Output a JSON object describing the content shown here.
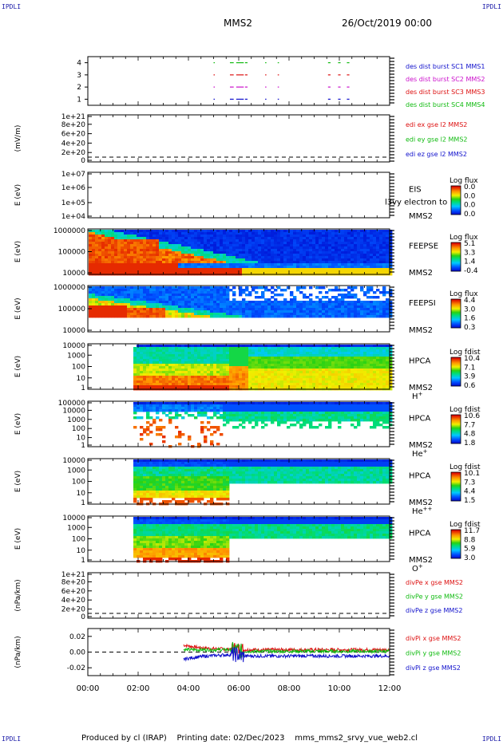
{
  "corner_label": "IPDLI",
  "header": {
    "spacecraft": "MMS2",
    "date": "26/Oct/2019 00:00"
  },
  "footer": {
    "produced": "Produced by cl (IRAP)",
    "printing": "Printing date: 02/Dec/2023",
    "filename": "mms_mms2_srvy_vue_web2.cl"
  },
  "colors": {
    "red": "#dd1111",
    "green": "#11bb11",
    "blue": "#1111cc",
    "magenta": "#cc11cc"
  },
  "chart_data": {
    "type": "heatmap",
    "x_ticks": [
      "00:00",
      "02:00",
      "04:00",
      "06:00",
      "08:00",
      "10:00",
      "12:00"
    ],
    "x_range_hours": [
      0,
      12
    ],
    "panels": [
      {
        "id": "burst",
        "type": "scatter",
        "y_ticks": [
          "1",
          "2",
          "3",
          "4"
        ],
        "ylim": [
          0.5,
          4.5
        ],
        "legend": [
          {
            "text": "des dist burst SC1 MMS1",
            "color": "blue"
          },
          {
            "text": "des dist burst SC2 MMS2",
            "color": "magenta"
          },
          {
            "text": "des dist burst SC3 MMS3",
            "color": "red"
          },
          {
            "text": "des dist burst SC4 MMS4",
            "color": "green"
          }
        ]
      },
      {
        "id": "edi",
        "type": "line",
        "ylabel": "(mV/m)",
        "y_ticks": [
          "0",
          "2e+20",
          "4e+20",
          "6e+20",
          "8e+20",
          "1e+21"
        ],
        "legend": [
          {
            "text": "edi ex gse l2 MMS2",
            "color": "red"
          },
          {
            "text": "edi ey gse l2 MMS2",
            "color": "green"
          },
          {
            "text": "edi ez gse l2 MMS2",
            "color": "blue"
          }
        ]
      },
      {
        "id": "eis",
        "type": "heatmap",
        "ylabel": "E (eV)",
        "y_ticks": [
          "1e+04",
          "1e+05",
          "1e+06",
          "1e+07"
        ],
        "labels": [
          "EIS",
          "MMS2"
        ],
        "overlay_text": "l3vy electron to",
        "colorbar_title": "Log flux",
        "colorbar_ticks": [
          "0.0",
          "0.0",
          "0.0",
          "0.0"
        ]
      },
      {
        "id": "feepse",
        "type": "heatmap",
        "ylabel": "E (eV)",
        "y_ticks": [
          "10000",
          "100000",
          "1000000"
        ],
        "labels": [
          "FEEPSE",
          "MMS2"
        ],
        "colorbar_title": "Log flux",
        "colorbar_ticks": [
          "5.1",
          "3.3",
          "1.4",
          "-0.4"
        ]
      },
      {
        "id": "feepsi",
        "type": "heatmap",
        "ylabel": "E (eV)",
        "y_ticks": [
          "10000",
          "100000",
          "1000000"
        ],
        "labels": [
          "FEEPSI",
          "MMS2"
        ],
        "colorbar_title": "Log flux",
        "colorbar_ticks": [
          "4.4",
          "3.0",
          "1.6",
          "0.3"
        ]
      },
      {
        "id": "hpca_h",
        "type": "heatmap",
        "ylabel": "E (eV)",
        "y_ticks": [
          "1",
          "10",
          "100",
          "1000",
          "10000"
        ],
        "labels": [
          "HPCA",
          "MMS2"
        ],
        "species": "H",
        "species_sup": "+",
        "colorbar_title": "Log fdist",
        "colorbar_ticks": [
          "10.4",
          "7.1",
          "3.9",
          "0.6"
        ]
      },
      {
        "id": "hpca_he",
        "type": "heatmap",
        "ylabel": "E (eV)",
        "y_ticks": [
          "1",
          "10",
          "100",
          "1000",
          "10000",
          "100000"
        ],
        "labels": [
          "HPCA",
          "MMS2"
        ],
        "species": "He",
        "species_sup": "+",
        "colorbar_title": "Log fdist",
        "colorbar_ticks": [
          "10.6",
          "7.7",
          "4.8",
          "1.8"
        ]
      },
      {
        "id": "hpca_hepp",
        "type": "heatmap",
        "ylabel": "E (eV)",
        "y_ticks": [
          "1",
          "10",
          "100",
          "1000",
          "10000"
        ],
        "labels": [
          "HPCA",
          "MMS2"
        ],
        "species": "He",
        "species_sup": "++",
        "colorbar_title": "Log fdist",
        "colorbar_ticks": [
          "10.1",
          "7.3",
          "4.4",
          "1.5"
        ]
      },
      {
        "id": "hpca_o",
        "type": "heatmap",
        "ylabel": "E (eV)",
        "y_ticks": [
          "1",
          "10",
          "100",
          "1000",
          "10000"
        ],
        "labels": [
          "HPCA",
          "MMS2"
        ],
        "species": "O",
        "species_sup": "+",
        "colorbar_title": "Log fdist",
        "colorbar_ticks": [
          "11.7",
          "8.8",
          "5.9",
          "3.0"
        ]
      },
      {
        "id": "divpe",
        "type": "line",
        "ylabel": "(nPa/km)",
        "y_ticks": [
          "0",
          "2e+20",
          "4e+20",
          "6e+20",
          "8e+20",
          "1e+21"
        ],
        "legend": [
          {
            "text": "divPe x gse MMS2",
            "color": "red"
          },
          {
            "text": "divPe y gse MMS2",
            "color": "green"
          },
          {
            "text": "divPe z gse MMS2",
            "color": "blue"
          }
        ]
      },
      {
        "id": "divpi",
        "type": "line",
        "ylabel": "(nPa/km)",
        "y_ticks": [
          "-0.02",
          "0.00",
          "0.02"
        ],
        "ylim": [
          -0.03,
          0.03
        ],
        "legend": [
          {
            "text": "divPi x gse MMS2",
            "color": "red"
          },
          {
            "text": "divPi y gse MMS2",
            "color": "green"
          },
          {
            "text": "divPi z gse MMS2",
            "color": "blue"
          }
        ]
      }
    ]
  }
}
